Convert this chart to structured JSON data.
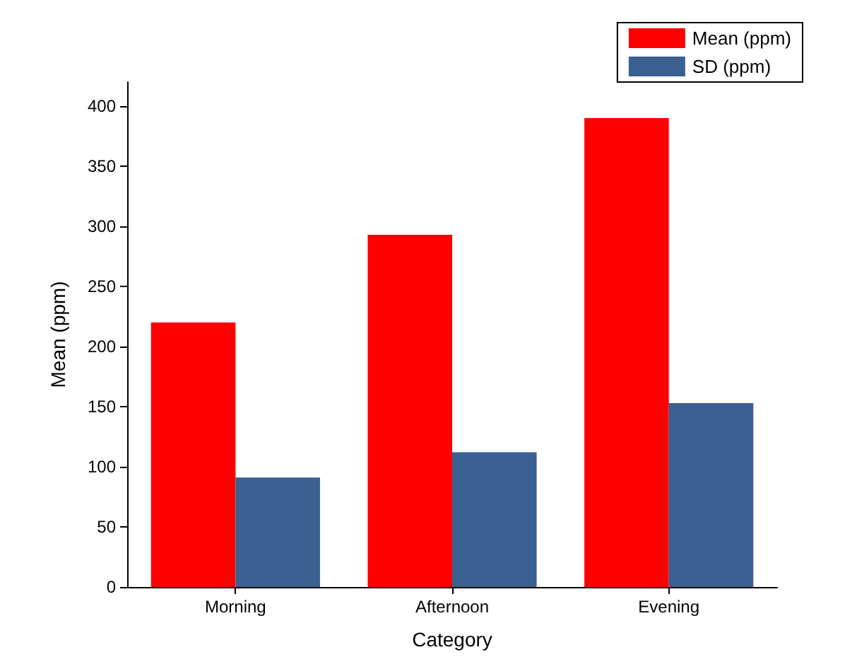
{
  "chart_data": {
    "type": "bar",
    "xlabel": "Category",
    "ylabel": "Mean (ppm)",
    "categories": [
      "Morning",
      "Afternoon",
      "Evening"
    ],
    "series": [
      {
        "name": "Mean (ppm)",
        "color": "#ff0000",
        "values": [
          220,
          293,
          390
        ]
      },
      {
        "name": "SD (ppm)",
        "color": "#3a5f91",
        "values": [
          91,
          112,
          153
        ]
      }
    ],
    "ylim": [
      0,
      420
    ],
    "yticks": [
      0,
      50,
      100,
      150,
      200,
      250,
      300,
      350,
      400
    ],
    "grid": false,
    "legend": "top right"
  }
}
